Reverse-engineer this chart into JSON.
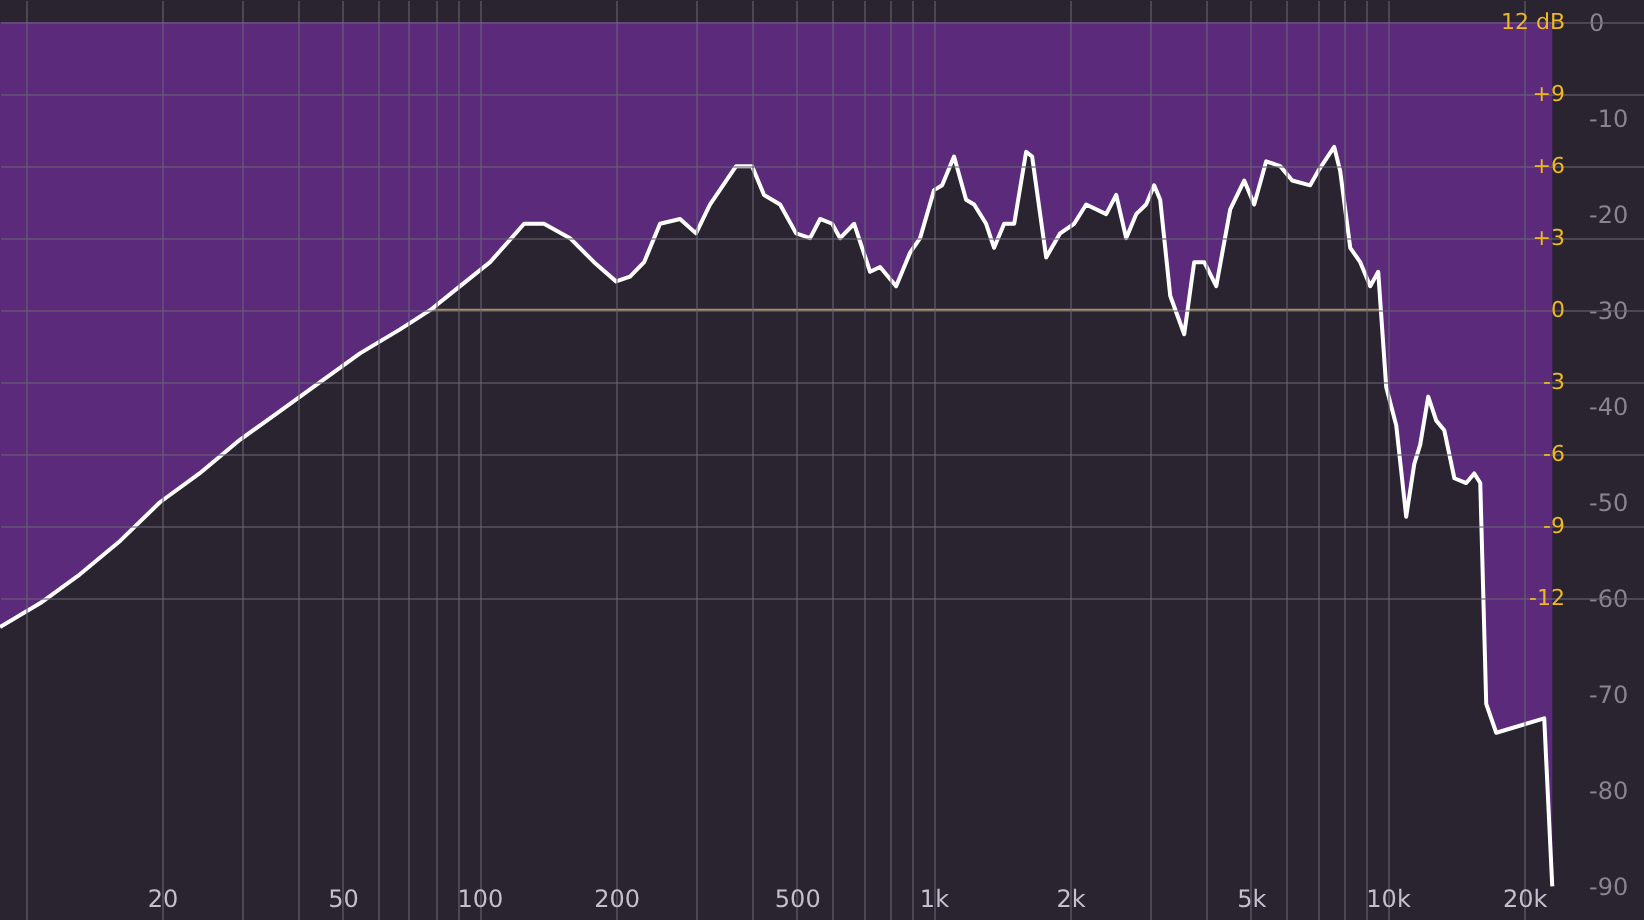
{
  "chart_data": {
    "type": "area",
    "x": [
      8.8,
      10.8,
      13.2,
      16.2,
      19.8,
      24.2,
      29.7,
      36.4,
      44.6,
      54.6,
      66.9,
      77.9,
      90.7,
      105.6,
      125.5,
      138.8,
      158.4,
      178.9,
      200,
      214.7,
      230.6,
      250,
      276.7,
      300,
      322,
      367.6,
      398.6,
      423.6,
      459.5,
      498.4,
      535,
      562.9,
      598.3,
      623,
      668.9,
      725.3,
      762.9,
      827.6,
      888.5,
      934.6,
      1003,
      1045,
      1110,
      1180,
      1229,
      1306,
      1360,
      1431,
      1506,
      1600,
      1649,
      1771,
      1901,
      2041,
      2169,
      2401,
      2526,
      2657,
      2795,
      2940,
      3062,
      3157,
      3322,
      3566,
      3751,
      3947,
      4195,
      4503,
      4834,
      5085,
      5404,
      5802,
      6166,
      6754,
      7035,
      7629,
      7864,
      8275,
      8705,
      9158,
      9537,
      9931,
      10450,
      10990,
      11450,
      11800,
      12290,
      12800,
      13330,
      14030,
      14900,
      15520,
      16000,
      16490,
      17350,
      22130,
      22360,
      23050
    ],
    "series": [
      {
        "color": "#5b2a7a",
        "values": [
          -63,
          -60.5,
          -57.5,
          -54,
          -50,
          -47,
          -43.5,
          -40.5,
          -37.5,
          -34.5,
          -32,
          -30,
          -27.5,
          -25,
          -21,
          -21,
          -22.5,
          -25,
          -27,
          -26.5,
          -25,
          -21,
          -20.5,
          -22,
          -19,
          -15,
          -15,
          -18,
          -19,
          -22,
          -22.5,
          -20.5,
          -21,
          -22.5,
          -21,
          -26,
          -25.5,
          -27.5,
          -24,
          -22.5,
          -17.5,
          -17,
          -14,
          -18.5,
          -19,
          -21,
          -23.5,
          -21,
          -21,
          -13.5,
          -14,
          -24.5,
          -22,
          -21,
          -19,
          -20,
          -18,
          -22.5,
          -20,
          -19,
          -17,
          -18.5,
          -28.5,
          -32.5,
          -25,
          -25,
          -27.5,
          -19.5,
          -16.5,
          -19,
          -14.5,
          -15,
          -16.5,
          -17,
          -15.5,
          -13,
          -15.5,
          -23.5,
          -25,
          -27.5,
          -26,
          -38,
          -42,
          -51.5,
          -46,
          -44,
          -39,
          -41.5,
          -42.5,
          -47.5,
          -48,
          -47,
          -48,
          -71,
          -74,
          -72.5,
          -77,
          -90
        ]
      }
    ],
    "log": "x",
    "xlim": [
      8.8,
      36700
    ],
    "xticks": [
      {
        "value": 10,
        "label": null
      },
      {
        "value": 20,
        "label": "20"
      },
      {
        "value": 30,
        "label": null
      },
      {
        "value": 40,
        "label": null
      },
      {
        "value": 50,
        "label": "50"
      },
      {
        "value": 60,
        "label": null
      },
      {
        "value": 70,
        "label": null
      },
      {
        "value": 80,
        "label": null
      },
      {
        "value": 90,
        "label": null
      },
      {
        "value": 100,
        "label": "100"
      },
      {
        "value": 200,
        "label": "200"
      },
      {
        "value": 300,
        "label": null
      },
      {
        "value": 400,
        "label": null
      },
      {
        "value": 500,
        "label": "500"
      },
      {
        "value": 600,
        "label": null
      },
      {
        "value": 700,
        "label": null
      },
      {
        "value": 800,
        "label": null
      },
      {
        "value": 900,
        "label": null
      },
      {
        "value": 1000,
        "label": "1k"
      },
      {
        "value": 2000,
        "label": "2k"
      },
      {
        "value": 3000,
        "label": null
      },
      {
        "value": 4000,
        "label": null
      },
      {
        "value": 5000,
        "label": "5k"
      },
      {
        "value": 6000,
        "label": null
      },
      {
        "value": 7000,
        "label": null
      },
      {
        "value": 8000,
        "label": null
      },
      {
        "value": 9000,
        "label": null
      },
      {
        "value": 10000,
        "label": "10k"
      },
      {
        "value": 20000,
        "label": "20k"
      }
    ],
    "ylim": [
      -93.5,
      2.3
    ],
    "yticks": [
      0,
      -10,
      -20,
      -30,
      -40,
      -50,
      -60,
      -70,
      -80,
      -90
    ],
    "y2lim": [
      -25.4,
      12.9
    ],
    "y2ticks": [
      {
        "value": 12,
        "label": "12 dB"
      },
      {
        "value": 9,
        "label": "+9"
      },
      {
        "value": 6,
        "label": "+6"
      },
      {
        "value": 3,
        "label": "+3"
      },
      {
        "value": 0,
        "label": "0"
      },
      {
        "value": -3,
        "label": "-3"
      },
      {
        "value": -6,
        "label": "-6"
      },
      {
        "value": -9,
        "label": "-9"
      },
      {
        "value": -12,
        "label": "-12"
      }
    ],
    "ref_lines": [
      {
        "axis": "y2",
        "value": 0,
        "color": "#a8905a"
      }
    ],
    "grid": true
  }
}
